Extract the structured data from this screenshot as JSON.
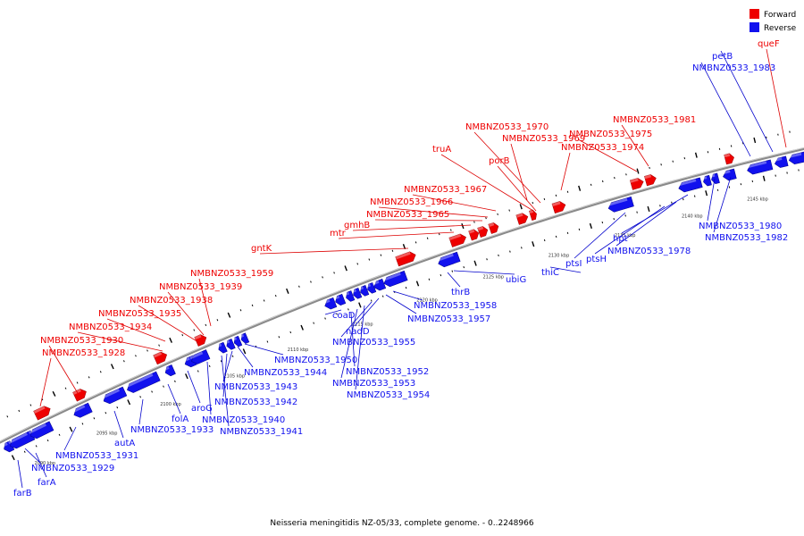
{
  "caption": "Neisseria meningitidis NZ-05/33, complete genome. - 0..2248966",
  "colors": {
    "forward": "#ee0000",
    "reverse": "#1111ee",
    "backbone": "#8a8a8a",
    "leader_forward": "#dd0000",
    "leader_reverse": "#0000cc"
  },
  "legend": [
    {
      "label": "Forward",
      "strand": "forward"
    },
    {
      "label": "Reverse",
      "strand": "reverse"
    }
  ],
  "tick_labels": [
    "2090 kbp",
    "2095 kbp",
    "2100 kbp",
    "2105 kbp",
    "2110 kbp",
    "2115 kbp",
    "2120 kbp",
    "2125 kbp",
    "2130 kbp",
    "2135 kbp",
    "2140 kbp",
    "2145 kbp"
  ],
  "genes": [
    {
      "name": "farB",
      "strand": "reverse"
    },
    {
      "name": "NMBNZ0533_1929",
      "strand": "reverse"
    },
    {
      "name": "farA",
      "strand": "reverse"
    },
    {
      "name": "NMBNZ0533_1931",
      "strand": "reverse"
    },
    {
      "name": "autA",
      "strand": "reverse"
    },
    {
      "name": "NMBNZ0533_1933",
      "strand": "reverse"
    },
    {
      "name": "folA",
      "strand": "reverse"
    },
    {
      "name": "aroG",
      "strand": "reverse"
    },
    {
      "name": "NMBNZ0533_1940",
      "strand": "reverse"
    },
    {
      "name": "NMBNZ0533_1941",
      "strand": "reverse"
    },
    {
      "name": "NMBNZ0533_1942",
      "strand": "reverse"
    },
    {
      "name": "NMBNZ0533_1943",
      "strand": "reverse"
    },
    {
      "name": "NMBNZ0533_1944",
      "strand": "reverse"
    },
    {
      "name": "NMBNZ0533_1950",
      "strand": "reverse"
    },
    {
      "name": "coaD",
      "strand": "reverse"
    },
    {
      "name": "NMBNZ0533_1952",
      "strand": "reverse"
    },
    {
      "name": "NMBNZ0533_1953",
      "strand": "reverse"
    },
    {
      "name": "NMBNZ0533_1954",
      "strand": "reverse"
    },
    {
      "name": "NMBNZ0533_1955",
      "strand": "reverse"
    },
    {
      "name": "nadD",
      "strand": "reverse"
    },
    {
      "name": "NMBNZ0533_1957",
      "strand": "reverse"
    },
    {
      "name": "NMBNZ0533_1958",
      "strand": "reverse"
    },
    {
      "name": "thrB",
      "strand": "reverse"
    },
    {
      "name": "ubiG",
      "strand": "reverse"
    },
    {
      "name": "thiC",
      "strand": "reverse"
    },
    {
      "name": "ptsI",
      "strand": "reverse"
    },
    {
      "name": "ptsH",
      "strand": "reverse"
    },
    {
      "name": "NMBNZ0533_1978",
      "strand": "reverse"
    },
    {
      "name": "hpt",
      "strand": "reverse"
    },
    {
      "name": "NMBNZ0533_1980",
      "strand": "reverse"
    },
    {
      "name": "NMBNZ0533_1982",
      "strand": "reverse"
    },
    {
      "name": "NMBNZ0533_1983",
      "strand": "reverse"
    },
    {
      "name": "petB",
      "strand": "reverse"
    },
    {
      "name": "queF",
      "strand": "forward"
    },
    {
      "name": "NMBNZ0533_1928",
      "strand": "forward"
    },
    {
      "name": "NMBNZ0533_1930",
      "strand": "forward"
    },
    {
      "name": "NMBNZ0533_1934",
      "strand": "forward"
    },
    {
      "name": "NMBNZ0533_1935",
      "strand": "forward"
    },
    {
      "name": "NMBNZ0533_1938",
      "strand": "forward"
    },
    {
      "name": "NMBNZ0533_1939",
      "strand": "forward"
    },
    {
      "name": "NMBNZ0533_1959",
      "strand": "forward"
    },
    {
      "name": "gntK",
      "strand": "forward"
    },
    {
      "name": "mtr",
      "strand": "forward"
    },
    {
      "name": "gmhB",
      "strand": "forward"
    },
    {
      "name": "NMBNZ0533_1965",
      "strand": "forward"
    },
    {
      "name": "NMBNZ0533_1966",
      "strand": "forward"
    },
    {
      "name": "NMBNZ0533_1967",
      "strand": "forward"
    },
    {
      "name": "truA",
      "strand": "forward"
    },
    {
      "name": "NMBNZ0533_1969",
      "strand": "forward"
    },
    {
      "name": "NMBNZ0533_1970",
      "strand": "forward"
    },
    {
      "name": "porB",
      "strand": "forward"
    },
    {
      "name": "NMBNZ0533_1974",
      "strand": "forward"
    },
    {
      "name": "NMBNZ0533_1975",
      "strand": "forward"
    },
    {
      "name": "NMBNZ0533_1981",
      "strand": "forward"
    }
  ]
}
